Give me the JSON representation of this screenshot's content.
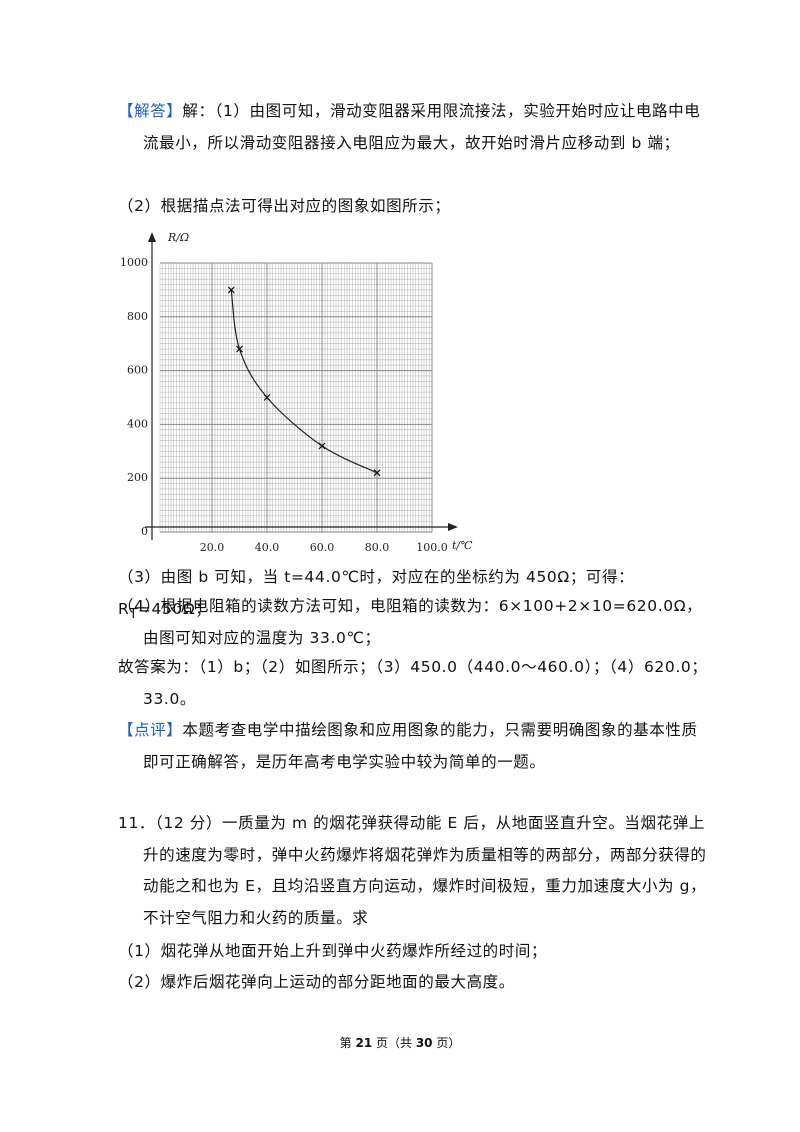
{
  "answer": {
    "tag": "【解答】",
    "p1": "解：（1）由图可知，滑动变阻器采用限流接法，实验开始时应让电路中电流最小，所以滑动变阻器接入电阻应为最大，故开始时滑片应移动到 b 端；",
    "p2": "（2）根据描点法可得出对应的图象如图所示；",
    "p3": [
      "（3）由图 b 可知，当 t=44.0℃时，对应在的坐标约为 450Ω；可得：R",
      "T",
      "=450Ω；"
    ],
    "p4": "（4）根据电阻箱的读数方法可知，电阻箱的读数为：6×100+2×10=620.0Ω，由图可知对应的温度为 33.0℃；",
    "p5": "故答案为：（1）b；（2）如图所示；（3）450.0（440.0～460.0）；（4）620.0；33.0。"
  },
  "figure": {
    "type": "line",
    "y_label": "R/Ω",
    "x_label": "t/℃",
    "x": [
      27,
      30,
      40,
      60,
      80
    ],
    "y": [
      900,
      680,
      500,
      320,
      220
    ],
    "xlim": [
      0,
      100
    ],
    "ylim": [
      0,
      1000
    ],
    "xticks": [
      {
        "value": 20,
        "label": "20.0"
      },
      {
        "value": 40,
        "label": "40.0"
      },
      {
        "value": 60,
        "label": "60.0"
      },
      {
        "value": 80,
        "label": "80.0"
      },
      {
        "value": 100,
        "label": "100.0"
      }
    ],
    "yticks": [
      0,
      200,
      400,
      600,
      800,
      1000
    ]
  },
  "comment": {
    "tag": "【点评】",
    "text": "本题考查电学中描绘图象和应用图象的能力，只需要明确图象的基本性质即可正确解答，是历年高考电学实验中较为简单的一题。"
  },
  "question": {
    "stem": "11．（12 分）一质量为 m 的烟花弹获得动能 E 后，从地面竖直升空。当烟花弹上升的速度为零时，弹中火药爆炸将烟花弹炸为质量相等的两部分，两部分获得的动能之和也为 E，且均沿竖直方向运动，爆炸时间极短，重力加速度大小为 g，不计空气阻力和火药的质量。求",
    "sub1": "（1）烟花弹从地面开始上升到弹中火药爆炸所经过的时间；",
    "sub2": "（2）爆炸后烟花弹向上运动的部分距地面的最大高度。"
  },
  "footer": [
    "第 ",
    "21",
    " 页（共 ",
    "30",
    " 页）"
  ]
}
